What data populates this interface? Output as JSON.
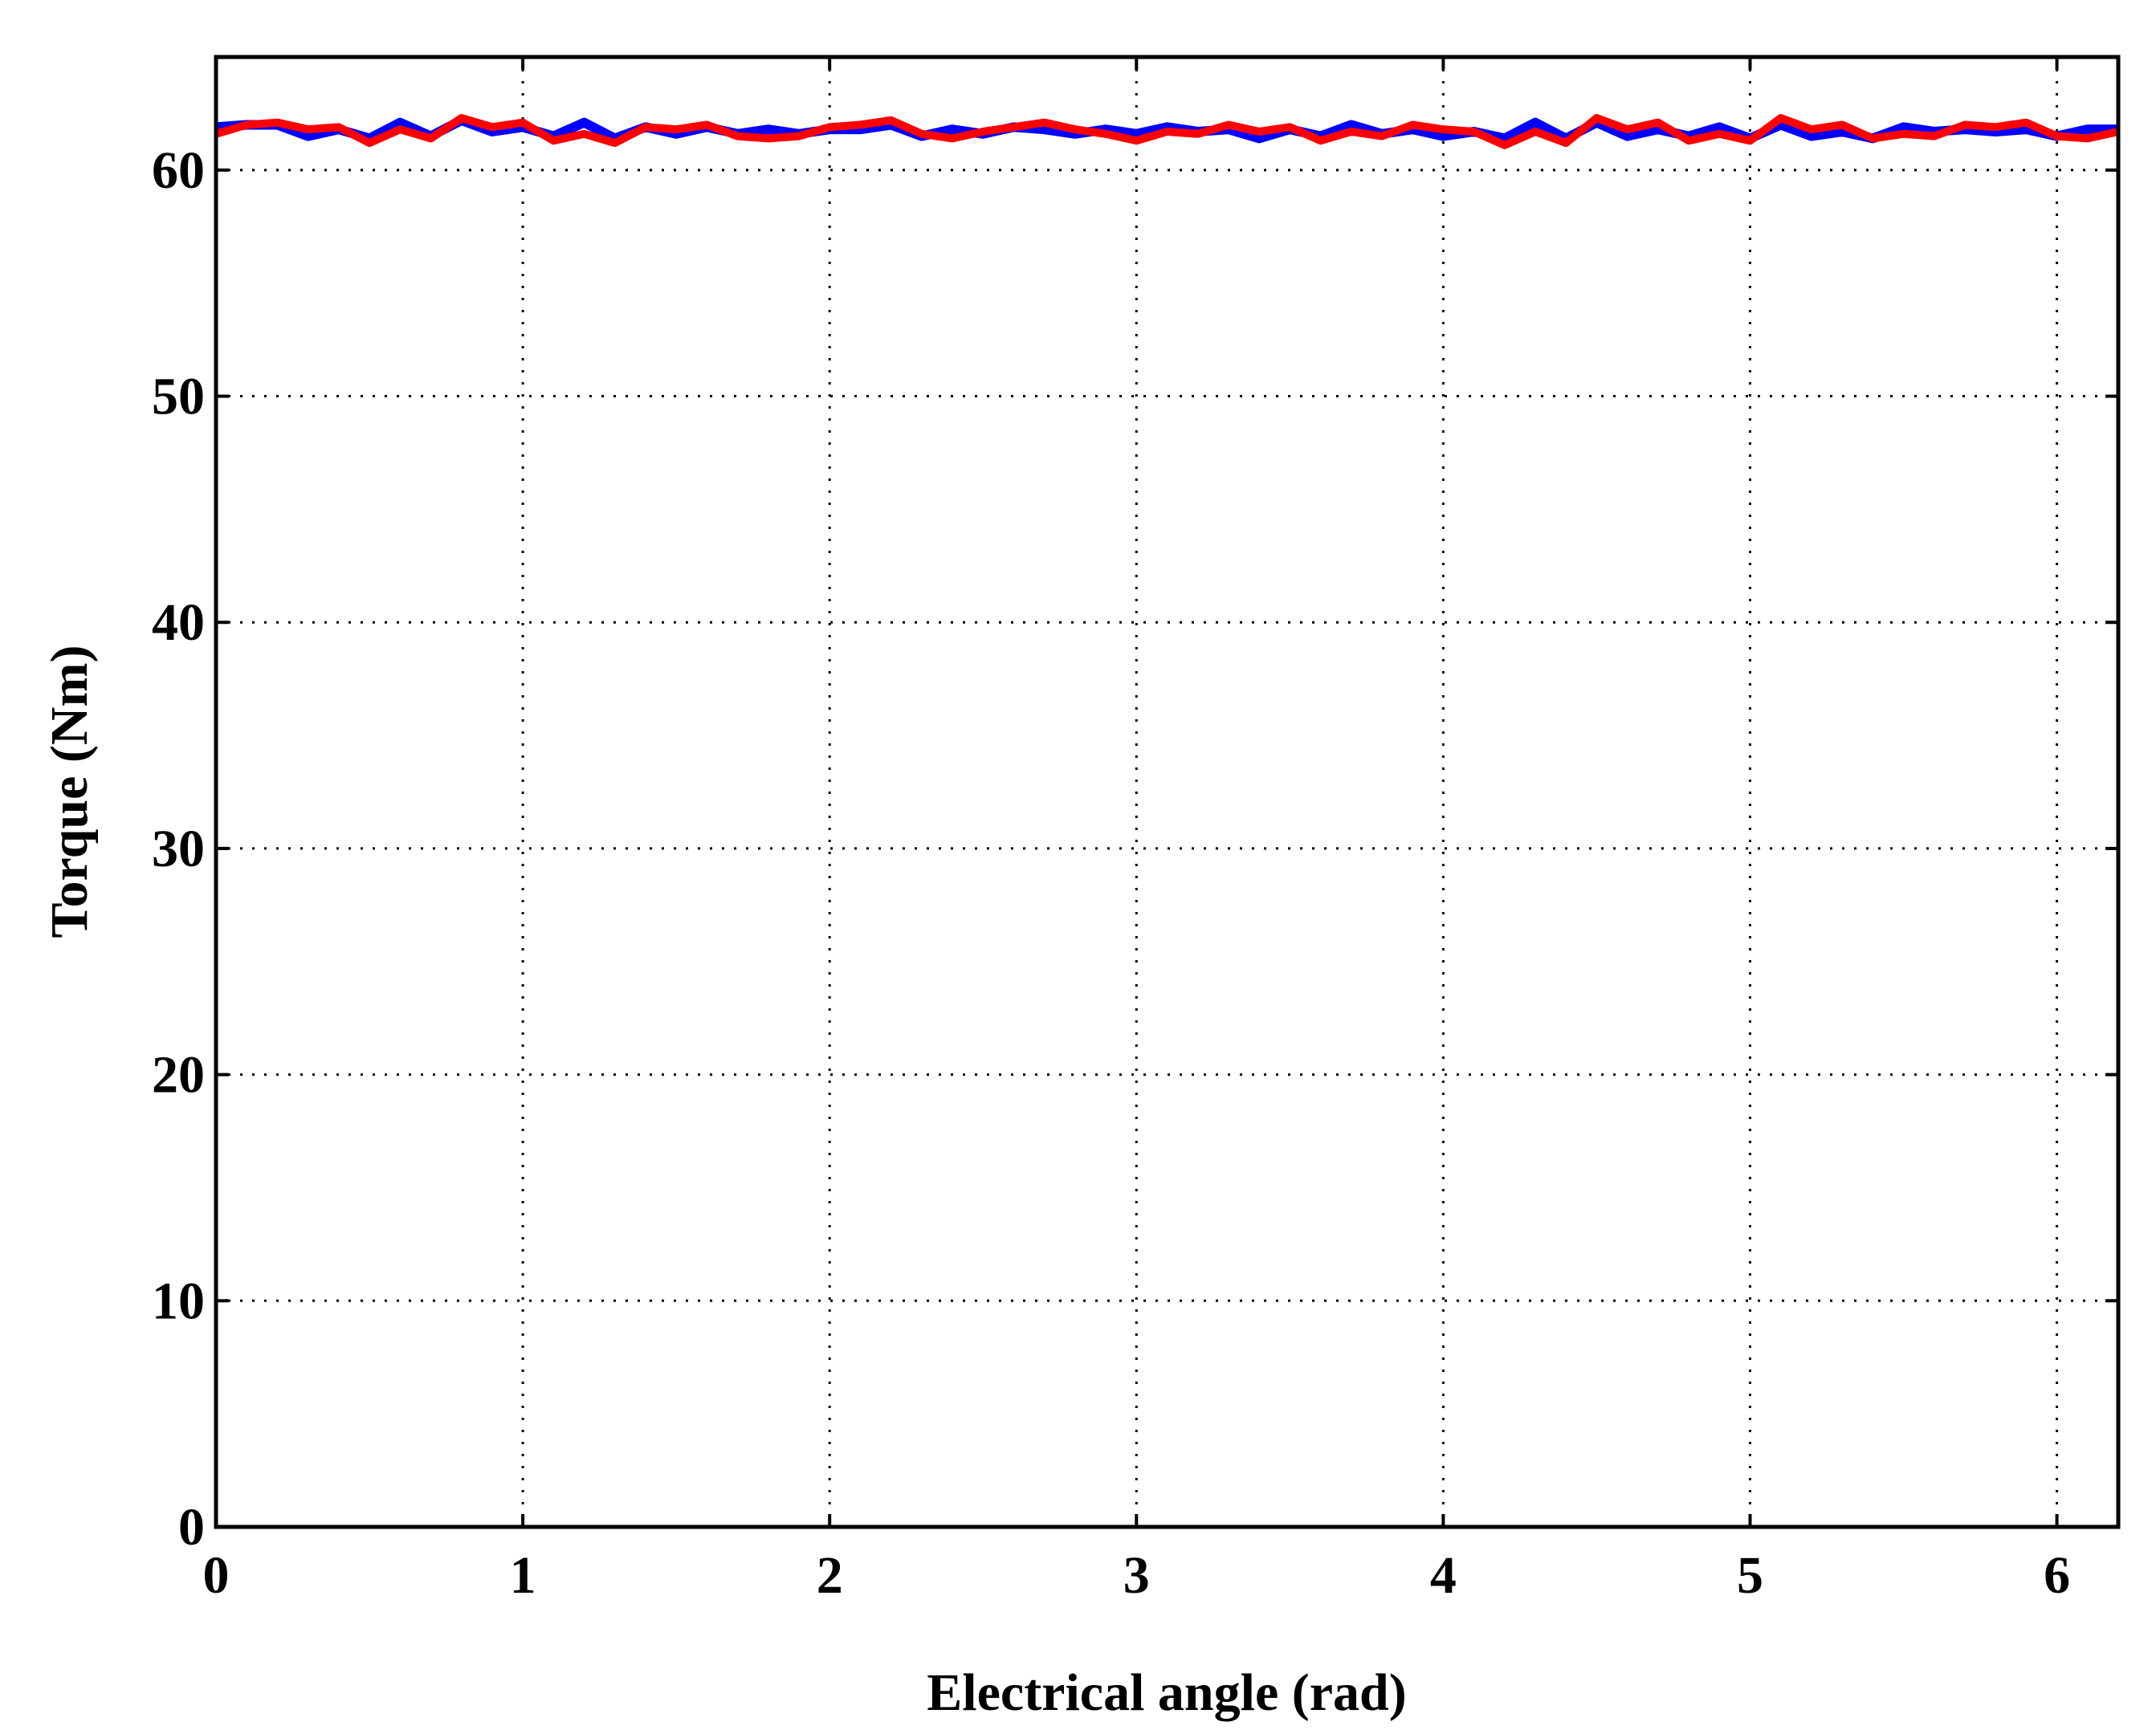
{
  "chart_data": {
    "type": "line",
    "xlabel": "Electrical angle (rad)",
    "ylabel": "Torque (Nm)",
    "x": [
      0,
      0.1,
      0.2,
      0.3,
      0.4,
      0.5,
      0.6,
      0.7,
      0.8,
      0.9,
      1.0,
      1.1,
      1.2,
      1.3,
      1.4,
      1.5,
      1.6,
      1.7,
      1.8,
      1.9,
      2.0,
      2.1,
      2.2,
      2.3,
      2.4,
      2.5,
      2.6,
      2.7,
      2.8,
      2.9,
      3.0,
      3.1,
      3.2,
      3.3,
      3.4,
      3.5,
      3.6,
      3.7,
      3.8,
      3.9,
      4.0,
      4.1,
      4.2,
      4.3,
      4.4,
      4.5,
      4.6,
      4.7,
      4.8,
      4.9,
      5.0,
      5.1,
      5.2,
      5.3,
      5.4,
      5.5,
      5.6,
      5.7,
      5.8,
      5.9,
      6.0,
      6.1,
      6.2
    ],
    "series": [
      {
        "color": "#0000ff",
        "values": [
          61.9,
          62.0,
          62.0,
          61.5,
          61.8,
          61.4,
          62.1,
          61.5,
          62.2,
          61.7,
          61.9,
          61.5,
          62.1,
          61.4,
          61.9,
          61.6,
          61.9,
          61.6,
          61.8,
          61.6,
          61.8,
          61.8,
          62.0,
          61.5,
          61.8,
          61.6,
          61.9,
          61.8,
          61.6,
          61.8,
          61.6,
          61.9,
          61.7,
          61.8,
          61.4,
          61.8,
          61.5,
          62.0,
          61.6,
          61.8,
          61.5,
          61.7,
          61.4,
          62.1,
          61.4,
          62.1,
          61.5,
          61.8,
          61.5,
          61.9,
          61.4,
          62.0,
          61.5,
          61.7,
          61.4,
          61.9,
          61.7,
          61.8,
          61.7,
          61.8,
          61.5,
          61.8,
          61.8
        ]
      },
      {
        "color": "#ff0000",
        "values": [
          61.6,
          62.0,
          62.1,
          61.8,
          61.9,
          61.2,
          61.8,
          61.4,
          62.3,
          61.9,
          62.1,
          61.3,
          61.6,
          61.2,
          61.9,
          61.8,
          62.0,
          61.5,
          61.4,
          61.5,
          61.9,
          62.0,
          62.2,
          61.6,
          61.4,
          61.7,
          61.9,
          62.1,
          61.8,
          61.6,
          61.3,
          61.7,
          61.6,
          62.0,
          61.7,
          61.9,
          61.3,
          61.7,
          61.5,
          62.0,
          61.8,
          61.7,
          61.1,
          61.7,
          61.2,
          62.3,
          61.8,
          62.1,
          61.3,
          61.6,
          61.3,
          62.3,
          61.8,
          62.0,
          61.4,
          61.6,
          61.5,
          62.0,
          61.9,
          62.1,
          61.5,
          61.4,
          61.7
        ]
      }
    ],
    "xlim": [
      0,
      6.2
    ],
    "xticks": [
      0,
      1,
      2,
      3,
      4,
      5,
      6
    ],
    "ylim": [
      0,
      65
    ],
    "yticks": [
      0,
      10,
      20,
      30,
      40,
      50,
      60
    ],
    "grid": true
  }
}
